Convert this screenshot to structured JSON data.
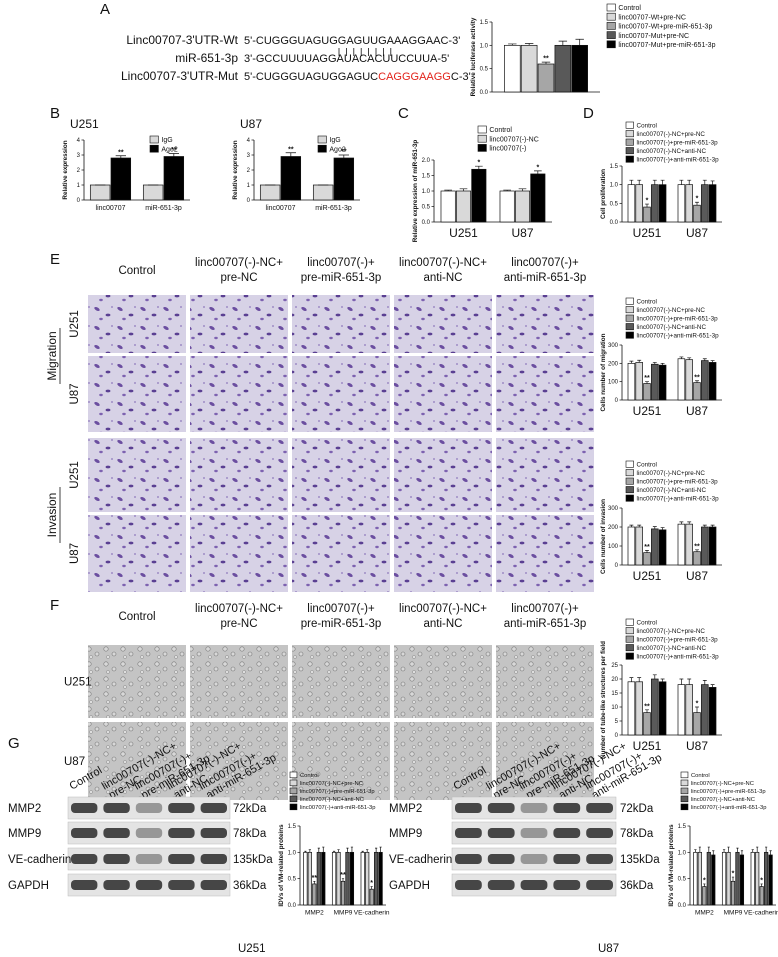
{
  "panel_labels": [
    "A",
    "B",
    "C",
    "D",
    "E",
    "F",
    "G"
  ],
  "sequences": [
    {
      "name": "Linc00707-3'UTR-Wt",
      "parts": [
        "5'-CUGGGUAGUGGAGUUGAAAGGAAC-3'"
      ]
    },
    {
      "name": "miR-651-3p",
      "parts": [
        "3'-GCCUUUUAGGAUACACUUCCUUA-5'"
      ]
    },
    {
      "name": "Linc00707-3'UTR-Mut",
      "parts": [
        "5'-CUGGGUAGUGGAGUC",
        "CAGGGAAGG",
        "C-3'"
      ]
    }
  ],
  "panel_e": {
    "columns": [
      [
        "Control"
      ],
      [
        "linc00707(-)-NC+",
        "pre-NC"
      ],
      [
        "linc00707(-)+",
        "pre-miR-651-3p"
      ],
      [
        "linc00707(-)-NC+",
        "anti-NC"
      ],
      [
        "linc00707(-)+",
        "anti-miR-651-3p"
      ]
    ],
    "groups": [
      "Migration",
      "Invasion"
    ],
    "rows": [
      "U251",
      "U87",
      "U251",
      "U87"
    ]
  },
  "panel_f": {
    "columns": [
      [
        "Control"
      ],
      [
        "linc00707(-)-NC+",
        "pre-NC"
      ],
      [
        "linc00707(-)+",
        "pre-miR-651-3p"
      ],
      [
        "linc00707(-)-NC+",
        "anti-NC"
      ],
      [
        "linc00707(-)+",
        "anti-miR-651-3p"
      ]
    ],
    "rows": [
      "U251",
      "U87"
    ]
  },
  "panel_g": {
    "left": {
      "lanes": [
        [
          "Control"
        ],
        [
          "linc00707(-)-NC+",
          "pre-NC"
        ],
        [
          "linc00707(-)+",
          "pre-miR-651-3p"
        ],
        [
          "linc00707(-)-NC+",
          "anti-NC"
        ],
        [
          "linc00707(-)+",
          "anti-miR-651-3p"
        ]
      ],
      "proteins": [
        "MMP2",
        "MMP9",
        "VE-cadherin",
        "GAPDH"
      ],
      "sizes": [
        "72kDa",
        "78kDa",
        "135kDa",
        "36kDa"
      ],
      "cell": "U251"
    },
    "right": {
      "lanes": [
        [
          "Control"
        ],
        [
          "linc00707(-)-NC+",
          "pre-NC"
        ],
        [
          "linc00707(-)+",
          "pre-miR-651-3p"
        ],
        [
          "linc00707(-)-NC+",
          "anti-NC"
        ],
        [
          "linc00707(-)+",
          "anti-miR-651-3p"
        ]
      ],
      "proteins": [
        "MMP2",
        "MMP9",
        "VE-cadherin",
        "GAPDH"
      ],
      "sizes": [
        "72kDa",
        "78kDa",
        "135kDa",
        "36kDa"
      ],
      "cell": "U87"
    }
  },
  "chart_data": [
    {
      "type": "bar",
      "ylabel": "Relative luciferase activity",
      "categories": [
        null
      ],
      "ylim": [
        0,
        1.5
      ],
      "yticks": [
        {
          "value": 0,
          "label": "0.0"
        },
        0.5,
        {
          "value": 1,
          "label": "1.0"
        },
        1.5
      ],
      "series": [
        {
          "name": "Control",
          "color": "#ffffff",
          "values": [
            1.0
          ],
          "errors": [
            0.03
          ],
          "significance": [
            null
          ]
        },
        {
          "name": "linc00707-Wt+pre-NC",
          "color": "#d9d9d9",
          "values": [
            1.0
          ],
          "errors": [
            0.04
          ],
          "significance": [
            null
          ]
        },
        {
          "name": "linc00707-Wt+pre-miR-651-3p",
          "color": "#a6a6a6",
          "values": [
            0.6
          ],
          "errors": [
            0.04
          ],
          "significance": [
            "**"
          ]
        },
        {
          "name": "linc00707-Mut+pre-NC",
          "color": "#595959",
          "values": [
            1.0
          ],
          "errors": [
            0.09
          ],
          "significance": [
            null
          ]
        },
        {
          "name": "linc00707-Mut+pre-miR-651-3p",
          "color": "#000000",
          "values": [
            1.0
          ],
          "errors": [
            0.13
          ],
          "significance": [
            null
          ]
        }
      ]
    },
    {
      "type": "bar",
      "title": "U251",
      "ylabel": "Relative expression",
      "categories": [
        "linc00707",
        "miR-651-3p"
      ],
      "ylim": [
        0,
        4
      ],
      "yticks": [
        0,
        1,
        2,
        3,
        4
      ],
      "series": [
        {
          "name": "IgG",
          "color": "#d9d9d9",
          "values": [
            1,
            1
          ],
          "errors": [
            0,
            0
          ],
          "significance": [
            null,
            null
          ]
        },
        {
          "name": "Ago2",
          "color": "#000000",
          "values": [
            2.8,
            2.9
          ],
          "errors": [
            0.15,
            0.2
          ],
          "significance": [
            "**",
            "**"
          ]
        }
      ]
    },
    {
      "type": "bar",
      "title": "U87",
      "ylabel": "Relative expression",
      "categories": [
        "linc00707",
        "miR-651-3p"
      ],
      "ylim": [
        0,
        4
      ],
      "yticks": [
        0,
        1,
        2,
        3,
        4
      ],
      "series": [
        {
          "name": "IgG",
          "color": "#d9d9d9",
          "values": [
            1,
            1
          ],
          "errors": [
            0,
            0
          ],
          "significance": [
            null,
            null
          ]
        },
        {
          "name": "Ago2",
          "color": "#000000",
          "values": [
            2.9,
            2.8
          ],
          "errors": [
            0.25,
            0.2
          ],
          "significance": [
            "**",
            "**"
          ]
        }
      ]
    },
    {
      "type": "bar",
      "ylabel": "Relative expression of miR-651-3p",
      "categories": [
        "U251",
        "U87"
      ],
      "ylim": [
        0,
        2
      ],
      "yticks": [
        {
          "value": 0,
          "label": "0.0"
        },
        0.5,
        {
          "value": 1,
          "label": "1.0"
        },
        1.5,
        {
          "value": 2,
          "label": "2.0"
        }
      ],
      "series": [
        {
          "name": "Control",
          "color": "#ffffff",
          "values": [
            1,
            1
          ],
          "errors": [
            0.03,
            0.03
          ],
          "significance": [
            null,
            null
          ]
        },
        {
          "name": "linc00707(-)-NC",
          "color": "#d9d9d9",
          "values": [
            1,
            1
          ],
          "errors": [
            0.07,
            0.07
          ],
          "significance": [
            null,
            null
          ]
        },
        {
          "name": "linc00707(-)",
          "color": "#000000",
          "values": [
            1.7,
            1.55
          ],
          "errors": [
            0.1,
            0.1
          ],
          "significance": [
            "*",
            "*"
          ]
        }
      ]
    },
    {
      "type": "bar",
      "ylabel": "Cell proliferation",
      "categories": [
        "U251",
        "U87"
      ],
      "ylim": [
        0,
        1.5
      ],
      "yticks": [
        {
          "value": 0,
          "label": "0.0"
        },
        0.5,
        {
          "value": 1,
          "label": "1.0"
        },
        1.5
      ],
      "series": [
        {
          "name": "Control",
          "color": "#ffffff",
          "values": [
            1,
            1
          ],
          "errors": [
            0.12,
            0.12
          ],
          "significance": [
            null,
            null
          ]
        },
        {
          "name": "linc00707(-)-NC+pre-NC",
          "color": "#d9d9d9",
          "values": [
            1,
            1
          ],
          "errors": [
            0.12,
            0.12
          ],
          "significance": [
            null,
            null
          ]
        },
        {
          "name": "linc00707(-)+pre-miR-651-3p",
          "color": "#a6a6a6",
          "values": [
            0.4,
            0.45
          ],
          "errors": [
            0.08,
            0.08
          ],
          "significance": [
            "*",
            "*"
          ]
        },
        {
          "name": "linc00707(-)-NC+anti-NC",
          "color": "#595959",
          "values": [
            1,
            1
          ],
          "errors": [
            0.12,
            0.12
          ],
          "significance": [
            null,
            null
          ]
        },
        {
          "name": "linc00707(-)+anti-miR-651-3p",
          "color": "#000000",
          "values": [
            1,
            1
          ],
          "errors": [
            0.12,
            0.1
          ],
          "significance": [
            null,
            null
          ]
        }
      ]
    },
    {
      "type": "bar",
      "ylabel": "Cells number of migration",
      "categories": [
        "U251",
        "U87"
      ],
      "ylim": [
        0,
        300
      ],
      "yticks": [
        0,
        100,
        200,
        300
      ],
      "series": [
        {
          "name": "Control",
          "color": "#ffffff",
          "values": [
            200,
            225
          ],
          "errors": [
            12,
            10
          ],
          "significance": [
            null,
            null
          ]
        },
        {
          "name": "linc00707(-)-NC+pre-NC",
          "color": "#d9d9d9",
          "values": [
            205,
            220
          ],
          "errors": [
            12,
            10
          ],
          "significance": [
            null,
            null
          ]
        },
        {
          "name": "linc00707(-)+pre-miR-651-3p",
          "color": "#a6a6a6",
          "values": [
            90,
            95
          ],
          "errors": [
            10,
            10
          ],
          "significance": [
            "**",
            "**"
          ]
        },
        {
          "name": "linc00707(-)-NC+anti-NC",
          "color": "#595959",
          "values": [
            195,
            215
          ],
          "errors": [
            10,
            10
          ],
          "significance": [
            null,
            null
          ]
        },
        {
          "name": "linc00707(-)+anti-miR-651-3p",
          "color": "#000000",
          "values": [
            190,
            205
          ],
          "errors": [
            10,
            10
          ],
          "significance": [
            null,
            null
          ]
        }
      ]
    },
    {
      "type": "bar",
      "ylabel": "Cells number of invasion",
      "categories": [
        "U251",
        "U87"
      ],
      "ylim": [
        0,
        300
      ],
      "yticks": [
        0,
        100,
        200,
        300
      ],
      "series": [
        {
          "name": "Control",
          "color": "#ffffff",
          "values": [
            200,
            215
          ],
          "errors": [
            10,
            12
          ],
          "significance": [
            null,
            null
          ]
        },
        {
          "name": "linc00707(-)-NC+pre-NC",
          "color": "#d9d9d9",
          "values": [
            200,
            215
          ],
          "errors": [
            10,
            12
          ],
          "significance": [
            null,
            null
          ]
        },
        {
          "name": "linc00707(-)+pre-miR-651-3p",
          "color": "#a6a6a6",
          "values": [
            65,
            70
          ],
          "errors": [
            12,
            10
          ],
          "significance": [
            "**",
            "**"
          ]
        },
        {
          "name": "linc00707(-)-NC+anti-NC",
          "color": "#595959",
          "values": [
            190,
            200
          ],
          "errors": [
            12,
            10
          ],
          "significance": [
            null,
            null
          ]
        },
        {
          "name": "linc00707(-)+anti-miR-651-3p",
          "color": "#000000",
          "values": [
            185,
            200
          ],
          "errors": [
            12,
            10
          ],
          "significance": [
            null,
            null
          ]
        }
      ]
    },
    {
      "type": "bar",
      "ylabel": "Number of tube-like structures per field",
      "categories": [
        "U251",
        "U87"
      ],
      "ylim": [
        0,
        25
      ],
      "yticks": [
        0,
        5,
        10,
        15,
        20,
        25
      ],
      "series": [
        {
          "name": "Control",
          "color": "#ffffff",
          "values": [
            19,
            18
          ],
          "errors": [
            1.5,
            2
          ],
          "significance": [
            null,
            null
          ]
        },
        {
          "name": "linc00707(-)-NC+pre-NC",
          "color": "#d9d9d9",
          "values": [
            19,
            18
          ],
          "errors": [
            1.5,
            2
          ],
          "significance": [
            null,
            null
          ]
        },
        {
          "name": "linc00707(-)+pre-miR-651-3p",
          "color": "#a6a6a6",
          "values": [
            8,
            8
          ],
          "errors": [
            1,
            2
          ],
          "significance": [
            "**",
            "*"
          ]
        },
        {
          "name": "linc00707(-)-NC+anti-NC",
          "color": "#595959",
          "values": [
            20,
            18
          ],
          "errors": [
            1.5,
            1.5
          ],
          "significance": [
            null,
            null
          ]
        },
        {
          "name": "linc00707(-)+anti-miR-651-3p",
          "color": "#000000",
          "values": [
            19,
            17
          ],
          "errors": [
            1,
            1
          ],
          "significance": [
            null,
            null
          ]
        }
      ]
    },
    {
      "type": "bar",
      "ylabel": "IDVs of VM-related proteins",
      "categories": [
        "MMP2",
        "MMP9",
        "VE-cadherin"
      ],
      "ylim": [
        0,
        1.5
      ],
      "yticks": [
        {
          "value": 0,
          "label": "0.0"
        },
        0.5,
        {
          "value": 1,
          "label": "1.0"
        },
        1.5
      ],
      "series": [
        {
          "name": "Control",
          "color": "#ffffff",
          "values": [
            1,
            1,
            1
          ],
          "errors": [
            0.02,
            0.02,
            0.02
          ],
          "significance": [
            null,
            null,
            null
          ]
        },
        {
          "name": "linc00707(-)-NC+pre-NC",
          "color": "#d9d9d9",
          "values": [
            1,
            1,
            1
          ],
          "errors": [
            0.05,
            0.05,
            0.05
          ],
          "significance": [
            null,
            null,
            null
          ]
        },
        {
          "name": "linc00707(-)+pre-miR-651-3p",
          "color": "#a6a6a6",
          "values": [
            0.4,
            0.45,
            0.3
          ],
          "errors": [
            0.05,
            0.05,
            0.05
          ],
          "significance": [
            "**",
            "**",
            "*"
          ]
        },
        {
          "name": "linc00707(-)-NC+anti-NC",
          "color": "#595959",
          "values": [
            1,
            1,
            1
          ],
          "errors": [
            0.08,
            0.08,
            0.08
          ],
          "significance": [
            null,
            null,
            null
          ]
        },
        {
          "name": "linc00707(-)+anti-miR-651-3p",
          "color": "#000000",
          "values": [
            1,
            1,
            1
          ],
          "errors": [
            0.1,
            0.1,
            0.1
          ],
          "significance": [
            null,
            null,
            null
          ]
        }
      ]
    },
    {
      "type": "bar",
      "ylabel": "IDVs of VM-related proteins",
      "categories": [
        "MMP2",
        "MMP9",
        "VE-cadherin"
      ],
      "ylim": [
        0,
        1.5
      ],
      "yticks": [
        {
          "value": 0,
          "label": "0.0"
        },
        0.5,
        {
          "value": 1,
          "label": "1.0"
        },
        1.5
      ],
      "series": [
        {
          "name": "Control",
          "color": "#ffffff",
          "values": [
            1,
            1,
            1
          ],
          "errors": [
            0.05,
            0.05,
            0.05
          ],
          "significance": [
            null,
            null,
            null
          ]
        },
        {
          "name": "linc00707(-)-NC+pre-NC",
          "color": "#d9d9d9",
          "values": [
            1,
            1,
            1
          ],
          "errors": [
            0.1,
            0.1,
            0.1
          ],
          "significance": [
            null,
            null,
            null
          ]
        },
        {
          "name": "linc00707(-)+pre-miR-651-3p",
          "color": "#a6a6a6",
          "values": [
            0.35,
            0.45,
            0.35
          ],
          "errors": [
            0.05,
            0.08,
            0.05
          ],
          "significance": [
            "*",
            "*",
            "*"
          ]
        },
        {
          "name": "linc00707(-)-NC+anti-NC",
          "color": "#595959",
          "values": [
            1,
            1,
            1
          ],
          "errors": [
            0.1,
            0.08,
            0.1
          ],
          "significance": [
            null,
            null,
            null
          ]
        },
        {
          "name": "linc00707(-)+anti-miR-651-3p",
          "color": "#000000",
          "values": [
            0.95,
            0.95,
            0.95
          ],
          "errors": [
            0.08,
            0.08,
            0.08
          ],
          "significance": [
            null,
            null,
            null
          ]
        }
      ]
    }
  ]
}
